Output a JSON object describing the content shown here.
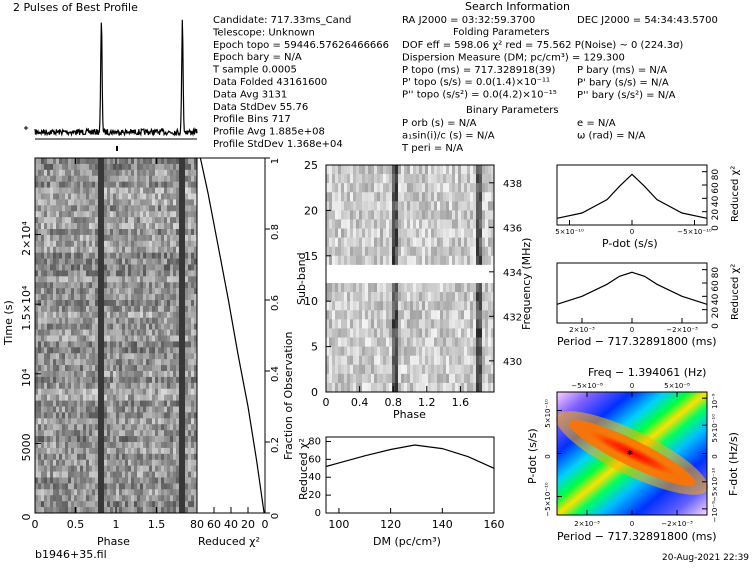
{
  "title": "2 Pulses of Best Profile",
  "info": {
    "heading": "Search Information",
    "ra": "RA J2000 = 03:32:59.3700",
    "dec": "DEC J2000 = 54:34:43.5700",
    "folding_heading": "Folding Parameters",
    "binary_heading": "Binary Parameters",
    "left": [
      "Candidate:  717.33ms_Cand",
      "Telescope:  Unknown",
      "Epoch topo = 59446.57626466666",
      "Epoch bary = N/A",
      "T sample      0.0005",
      "Data Folded    43161600",
      "Data Avg       3131",
      "Data StdDev    55.76",
      "Profile Bins   717",
      "Profile Avg    1.885e+08",
      "Profile StdDev 1.368e+04"
    ],
    "fold": [
      "DOF eff = 598.06   χ² red = 75.562   P(Noise) ~ 0   (224.3σ)",
      "Dispersion Measure (DM; pc/cm³) = 129.300",
      "P topo (ms) = 717.328918(39)",
      "P' topo (s/s) = 0.0(1.4)×10⁻¹¹",
      "P'' topo (s/s²) = 0.0(4.2)×10⁻¹⁵"
    ],
    "fold_bary": [
      "P bary (ms) = N/A",
      "P' bary (s/s) = N/A",
      "P'' bary (s/s²) = N/A"
    ],
    "binary_left": [
      "P orb (s) = N/A",
      "a₁sin(i)/c (s) = N/A",
      "T peri = N/A"
    ],
    "binary_right": [
      "e = N/A",
      "ω (rad) = N/A"
    ]
  },
  "filename": "b1946+35.fil",
  "datetime": "20-Aug-2021 22:39",
  "colors": {
    "accent_colormap": [
      "#ff00ff",
      "#0000ff",
      "#00ffff",
      "#00ff00",
      "#ffff00",
      "#ff0000"
    ]
  },
  "chart_data": [
    {
      "type": "line",
      "title": "2 Pulses of Best Profile",
      "x": [
        0.0,
        0.8,
        0.82,
        0.84,
        1.0,
        1.8,
        1.82,
        1.84,
        2.0
      ],
      "values": [
        1,
        1,
        10,
        1,
        1,
        1,
        10,
        1,
        1
      ],
      "peaks_at_phase": [
        0.82,
        1.82
      ],
      "xlim": [
        0,
        2
      ]
    },
    {
      "type": "heatmap",
      "xlabel": "Phase",
      "ylabel": "Time (s)",
      "xlim": [
        0,
        2
      ],
      "ylim": [
        0,
        25500
      ],
      "x_ticks": [
        "0",
        "0.5",
        "1",
        "1.5"
      ],
      "y_ticks": [
        "0",
        "5000",
        "10⁴",
        "1.5×10⁴",
        "2×10⁴"
      ],
      "pulse_phase": [
        0.82,
        1.82
      ]
    },
    {
      "type": "line",
      "xlabel": "Reduced χ²",
      "ylabel": "Fraction of Observation",
      "x_ticks": [
        "80",
        "60",
        "40",
        "20",
        "0"
      ],
      "y_ticks": [
        "0",
        "0.2",
        "0.4",
        "0.6",
        "0.8",
        "1"
      ],
      "xlim": [
        80,
        0
      ],
      "ylim": [
        0,
        1
      ],
      "points": [
        [
          1,
          0.0
        ],
        [
          10,
          0.15
        ],
        [
          20,
          0.3
        ],
        [
          32,
          0.45
        ],
        [
          43,
          0.6
        ],
        [
          55,
          0.75
        ],
        [
          67,
          0.9
        ],
        [
          76,
          1.0
        ]
      ]
    },
    {
      "type": "heatmap",
      "xlabel": "Phase",
      "ylabel": "Sub-band",
      "y2label": "Frequency (MHz)",
      "xlim": [
        0,
        2
      ],
      "ylim": [
        0,
        25
      ],
      "x_ticks": [
        "0",
        "0.4",
        "0.8",
        "1.2",
        "1.6"
      ],
      "y_ticks": [
        "0",
        "5",
        "10",
        "15",
        "20",
        "25"
      ],
      "y2_ticks": [
        "430",
        "432",
        "434",
        "436",
        "438"
      ],
      "masked_subbands": [
        12,
        13
      ],
      "pulse_phase": [
        0.82,
        1.82
      ]
    },
    {
      "type": "line",
      "xlabel": "DM (pc/cm³)",
      "ylabel": "Reduced χ²",
      "xlim": [
        95,
        160
      ],
      "ylim": [
        0,
        85
      ],
      "x_ticks": [
        "100",
        "120",
        "140",
        "160"
      ],
      "y_ticks": [
        "0",
        "20",
        "40",
        "60",
        "80"
      ],
      "x": [
        95,
        100,
        110,
        120,
        129.3,
        140,
        150,
        160
      ],
      "y": [
        52,
        56,
        64,
        71,
        76,
        72,
        63,
        50
      ]
    },
    {
      "type": "line",
      "xlabel": "P-dot (s/s)",
      "ylabel": "Reduced χ²",
      "x_ticks": [
        "5×10⁻¹⁰",
        "0",
        "−5×10⁻¹⁰"
      ],
      "y_ticks": [
        "0",
        "20",
        "40",
        "60",
        "80"
      ],
      "xlim": [
        -6e-10,
        6e-10
      ],
      "ylim": [
        0,
        90
      ],
      "x": [
        -6e-10,
        -4e-10,
        -2e-10,
        -1e-10,
        0,
        1e-10,
        2e-10,
        4e-10,
        6e-10
      ],
      "y": [
        10,
        18,
        38,
        58,
        76,
        58,
        38,
        18,
        10
      ]
    },
    {
      "type": "line",
      "xlabel": "Period − 717.32891800 (ms)",
      "ylabel": "Reduced χ²",
      "x_ticks": [
        "2×10⁻³",
        "0",
        "−2×10⁻³"
      ],
      "y_ticks": [
        "0",
        "20",
        "40",
        "60",
        "80"
      ],
      "xlim": [
        -0.003,
        0.003
      ],
      "ylim": [
        0,
        90
      ],
      "x": [
        -0.003,
        -0.002,
        -0.001,
        -0.0005,
        0,
        0.0005,
        0.001,
        0.002,
        0.003
      ],
      "y": [
        28,
        40,
        58,
        70,
        76,
        70,
        58,
        40,
        28
      ]
    },
    {
      "type": "heatmap",
      "title": "Freq − 1.394061 (Hz)",
      "xlabel": "Period − 717.32891800 (ms)",
      "ylabel": "P-dot (s/s)",
      "y2label": "F-dot (Hz/s)",
      "x_ticks": [
        "2×10⁻³",
        "0",
        "−2×10⁻³"
      ],
      "top_ticks": [
        "−5×10⁻⁸",
        "0",
        "5×10⁻⁸"
      ],
      "y_ticks": [
        "−5×10⁻¹⁰",
        "0",
        "5×10⁻¹⁰"
      ],
      "y2_ticks": [
        "−10⁻⁹",
        "−5×10⁻¹⁰",
        "0",
        "5×10⁻¹⁰",
        "10⁻⁹"
      ],
      "best_marker": [
        0,
        0
      ]
    }
  ]
}
